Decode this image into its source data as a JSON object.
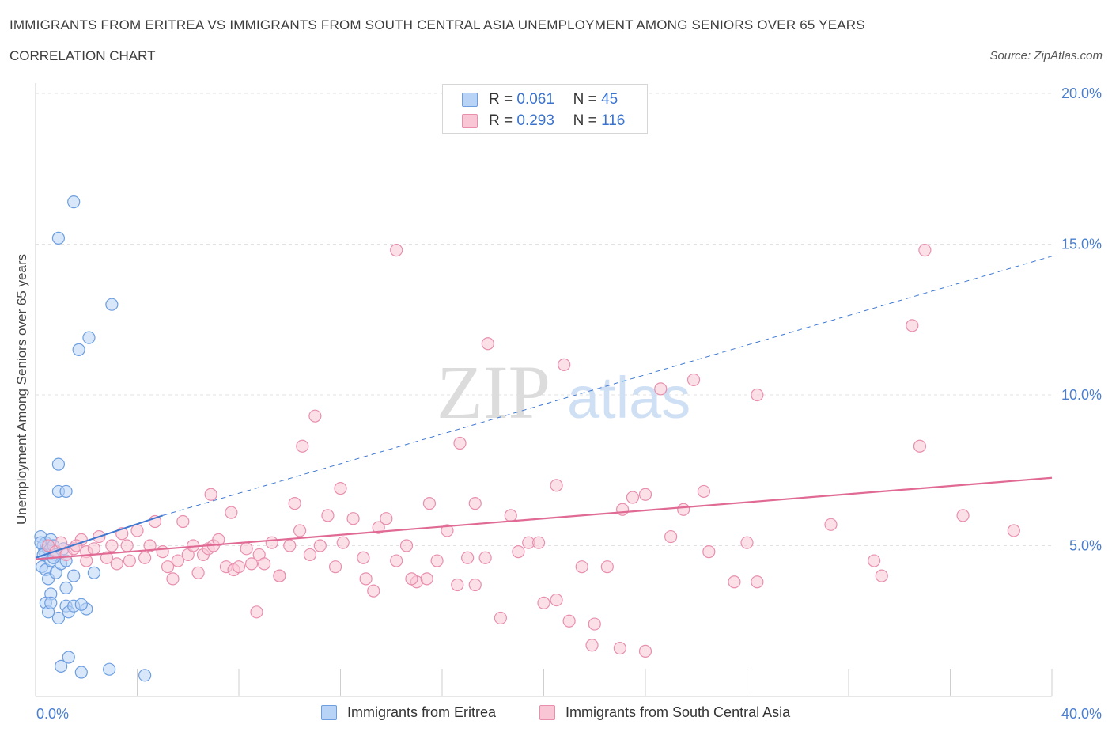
{
  "title": "IMMIGRANTS FROM ERITREA VS IMMIGRANTS FROM SOUTH CENTRAL ASIA UNEMPLOYMENT AMONG SENIORS OVER 65 YEARS",
  "subtitle": "CORRELATION CHART",
  "source": "Source: ZipAtlas.com",
  "watermark": {
    "zip": "ZIP",
    "atlas": "atlas"
  },
  "legend": {
    "r_label": "R =",
    "n_label": "N =",
    "rows": [
      {
        "r": "0.061",
        "n": "45",
        "fill": "#b8d3f5",
        "stroke": "#6d9ee0"
      },
      {
        "r": "0.293",
        "n": "116",
        "fill": "#f9c6d6",
        "stroke": "#e88fae"
      }
    ]
  },
  "bottom_legend": [
    {
      "label": "Immigrants from Eritrea",
      "fill": "#b8d3f5",
      "stroke": "#6d9ee0"
    },
    {
      "label": "Immigrants from South Central Asia",
      "fill": "#f9c6d6",
      "stroke": "#e88fae"
    }
  ],
  "chart_data": {
    "type": "scatter",
    "title": "IMMIGRANTS FROM ERITREA VS IMMIGRANTS FROM SOUTH CENTRAL ASIA UNEMPLOYMENT AMONG SENIORS OVER 65 YEARS",
    "subtitle": "CORRELATION CHART",
    "xlabel": "",
    "ylabel": "Unemployment Among Seniors over 65 years",
    "xlim": [
      0,
      40
    ],
    "ylim": [
      0,
      20
    ],
    "x_tick_labels": [
      "0.0%",
      "40.0%"
    ],
    "y_ticks": [
      5,
      10,
      15,
      20
    ],
    "y_tick_labels": [
      "5.0%",
      "10.0%",
      "15.0%",
      "20.0%"
    ],
    "grid": true,
    "series": [
      {
        "name": "Immigrants from Eritrea",
        "color": "#6d9ee0",
        "fill": "#b8d3f5",
        "trend": {
          "x": [
            0,
            5
          ],
          "y": [
            4.6,
            6.0
          ],
          "dashed_extension_to": [
            40,
            14.6
          ],
          "color": "#3f78d0"
        },
        "points": [
          [
            0.2,
            5.3
          ],
          [
            0.3,
            5.0
          ],
          [
            0.35,
            4.8
          ],
          [
            0.4,
            5.1
          ],
          [
            0.5,
            4.9
          ],
          [
            0.6,
            5.2
          ],
          [
            0.7,
            5.0
          ],
          [
            0.8,
            4.7
          ],
          [
            0.25,
            4.3
          ],
          [
            0.4,
            4.2
          ],
          [
            0.5,
            3.9
          ],
          [
            0.6,
            4.5
          ],
          [
            0.8,
            4.1
          ],
          [
            1.0,
            4.4
          ],
          [
            1.2,
            4.5
          ],
          [
            1.5,
            4.0
          ],
          [
            2.3,
            4.1
          ],
          [
            0.6,
            3.4
          ],
          [
            1.2,
            3.6
          ],
          [
            0.4,
            3.1
          ],
          [
            0.5,
            2.8
          ],
          [
            0.9,
            2.6
          ],
          [
            1.2,
            3.0
          ],
          [
            1.3,
            2.8
          ],
          [
            1.5,
            3.0
          ],
          [
            2.0,
            2.9
          ],
          [
            0.6,
            3.1
          ],
          [
            1.8,
            3.05
          ],
          [
            1.3,
            1.3
          ],
          [
            1.0,
            1.0
          ],
          [
            1.8,
            0.8
          ],
          [
            2.9,
            0.9
          ],
          [
            4.3,
            0.7
          ],
          [
            0.9,
            7.7
          ],
          [
            0.9,
            6.8
          ],
          [
            1.2,
            6.8
          ],
          [
            0.9,
            15.2
          ],
          [
            1.5,
            16.4
          ],
          [
            3.0,
            13.0
          ],
          [
            2.1,
            11.9
          ],
          [
            1.7,
            11.5
          ],
          [
            0.3,
            4.7
          ],
          [
            0.7,
            4.6
          ],
          [
            1.1,
            4.9
          ],
          [
            0.2,
            5.1
          ]
        ]
      },
      {
        "name": "Immigrants from South Central Asia",
        "color": "#e88fae",
        "fill": "#f9c6d6",
        "trend": {
          "x": [
            0,
            40
          ],
          "y": [
            4.55,
            7.25
          ],
          "color": "#e06a94"
        },
        "points": [
          [
            0.5,
            5.0
          ],
          [
            0.8,
            4.8
          ],
          [
            1.0,
            5.1
          ],
          [
            1.2,
            4.7
          ],
          [
            1.5,
            4.9
          ],
          [
            1.8,
            5.2
          ],
          [
            2.0,
            4.8
          ],
          [
            2.3,
            4.9
          ],
          [
            2.5,
            5.3
          ],
          [
            2.8,
            4.6
          ],
          [
            3.0,
            5.0
          ],
          [
            3.2,
            4.4
          ],
          [
            3.4,
            5.4
          ],
          [
            3.7,
            4.5
          ],
          [
            4.0,
            5.5
          ],
          [
            4.3,
            4.6
          ],
          [
            4.5,
            5.0
          ],
          [
            4.7,
            5.8
          ],
          [
            5.0,
            4.8
          ],
          [
            5.2,
            4.3
          ],
          [
            5.4,
            3.9
          ],
          [
            5.6,
            4.5
          ],
          [
            5.8,
            5.8
          ],
          [
            6.0,
            4.7
          ],
          [
            6.2,
            5.0
          ],
          [
            6.4,
            4.1
          ],
          [
            6.6,
            4.7
          ],
          [
            6.8,
            4.9
          ],
          [
            7.0,
            5.0
          ],
          [
            7.2,
            5.2
          ],
          [
            7.5,
            4.3
          ],
          [
            7.7,
            6.1
          ],
          [
            7.8,
            4.2
          ],
          [
            8.0,
            4.3
          ],
          [
            8.3,
            4.9
          ],
          [
            8.5,
            4.4
          ],
          [
            8.8,
            4.7
          ],
          [
            9.0,
            4.4
          ],
          [
            9.3,
            5.1
          ],
          [
            9.6,
            4.0
          ],
          [
            10.0,
            5.0
          ],
          [
            10.4,
            5.5
          ],
          [
            10.8,
            4.7
          ],
          [
            11.2,
            5.0
          ],
          [
            11.5,
            6.0
          ],
          [
            11.8,
            4.3
          ],
          [
            12.1,
            5.1
          ],
          [
            12.5,
            5.9
          ],
          [
            13.0,
            3.9
          ],
          [
            13.3,
            3.5
          ],
          [
            13.5,
            5.6
          ],
          [
            13.8,
            5.9
          ],
          [
            14.2,
            4.5
          ],
          [
            14.6,
            5.0
          ],
          [
            15.0,
            3.8
          ],
          [
            15.4,
            3.9
          ],
          [
            15.8,
            4.5
          ],
          [
            16.2,
            5.5
          ],
          [
            16.6,
            3.7
          ],
          [
            17.0,
            4.6
          ],
          [
            17.3,
            3.7
          ],
          [
            17.7,
            4.6
          ],
          [
            18.3,
            2.6
          ],
          [
            18.7,
            6.0
          ],
          [
            19.0,
            4.8
          ],
          [
            19.4,
            5.1
          ],
          [
            19.8,
            5.1
          ],
          [
            20.0,
            3.1
          ],
          [
            20.5,
            7.0
          ],
          [
            20.8,
            11.0
          ],
          [
            21.5,
            4.3
          ],
          [
            21.9,
            1.7
          ],
          [
            22.5,
            4.3
          ],
          [
            23.1,
            6.2
          ],
          [
            23.5,
            6.6
          ],
          [
            24.0,
            6.7
          ],
          [
            24.6,
            10.2
          ],
          [
            25.0,
            5.3
          ],
          [
            25.5,
            6.2
          ],
          [
            25.9,
            10.5
          ],
          [
            26.3,
            6.8
          ],
          [
            26.5,
            4.8
          ],
          [
            27.5,
            3.8
          ],
          [
            28.0,
            5.1
          ],
          [
            28.4,
            10.0
          ],
          [
            31.3,
            5.7
          ],
          [
            33.0,
            4.5
          ],
          [
            34.5,
            12.3
          ],
          [
            35.0,
            14.8
          ],
          [
            34.8,
            8.3
          ],
          [
            36.5,
            6.0
          ],
          [
            38.5,
            5.5
          ],
          [
            8.7,
            2.8
          ],
          [
            10.5,
            8.3
          ],
          [
            11.0,
            9.3
          ],
          [
            12.0,
            6.9
          ],
          [
            14.2,
            14.8
          ],
          [
            15.5,
            6.4
          ],
          [
            16.7,
            8.4
          ],
          [
            17.3,
            6.4
          ],
          [
            17.8,
            11.7
          ],
          [
            20.5,
            3.2
          ],
          [
            21.0,
            2.5
          ],
          [
            22.0,
            2.4
          ],
          [
            23.0,
            1.6
          ],
          [
            24.0,
            1.5
          ],
          [
            33.3,
            4.0
          ],
          [
            9.6,
            4.0
          ],
          [
            14.8,
            3.9
          ],
          [
            28.4,
            3.8
          ],
          [
            6.9,
            6.7
          ],
          [
            10.2,
            6.4
          ],
          [
            12.9,
            4.6
          ],
          [
            1.6,
            5.0
          ],
          [
            2.0,
            4.5
          ],
          [
            3.6,
            5.0
          ]
        ]
      }
    ]
  }
}
